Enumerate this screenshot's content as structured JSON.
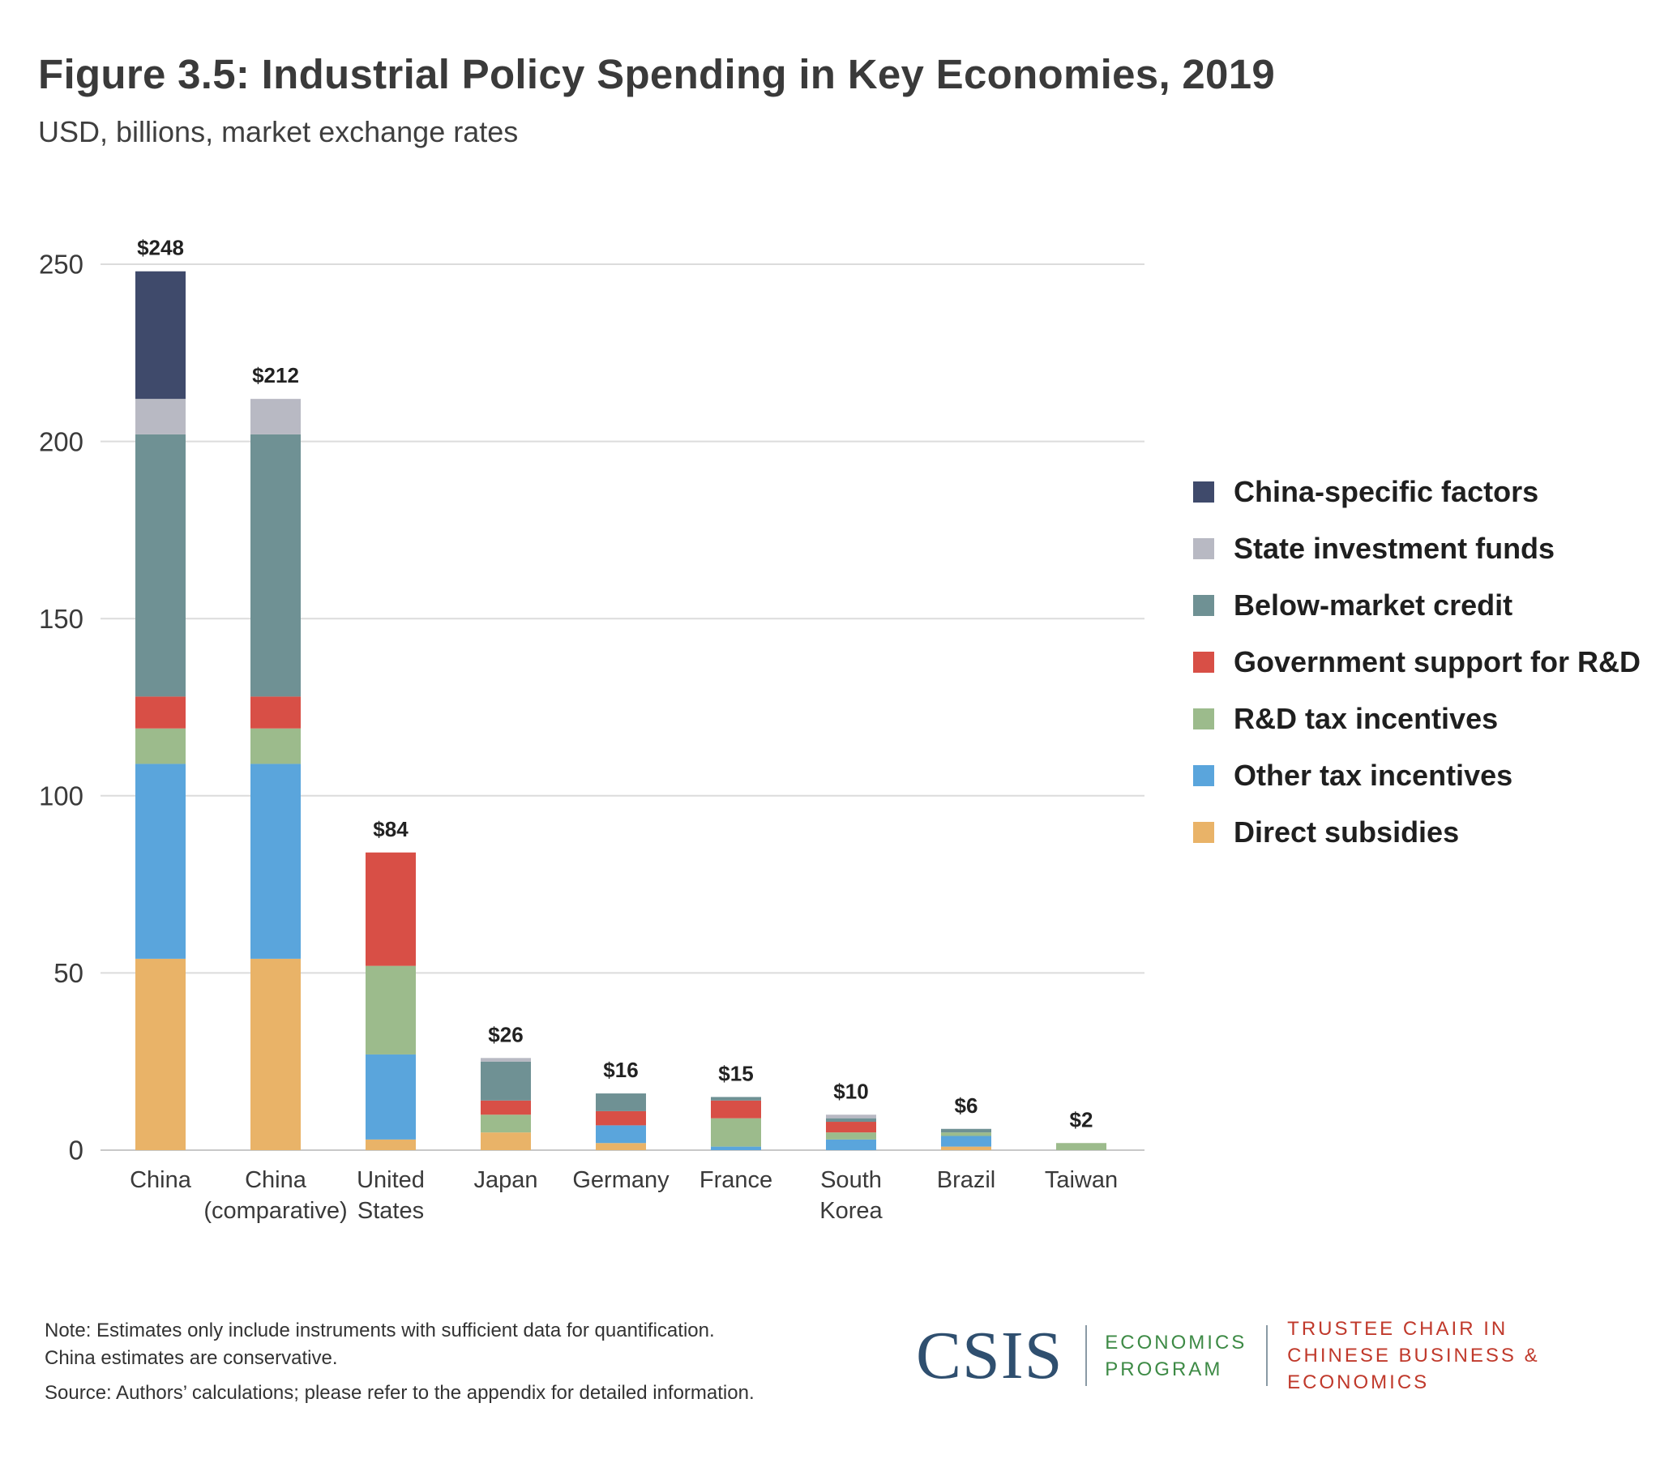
{
  "header": {
    "title": "Figure 3.5: Industrial Policy Spending in Key Economies, 2019",
    "subtitle": "USD, billions, market exchange rates"
  },
  "colors": {
    "china_specific": "#3f4a6b",
    "state_funds": "#b8b9c3",
    "below_market_credit": "#6f9194",
    "gov_rd": "#d84f46",
    "rd_tax": "#9cbb8c",
    "other_tax": "#5aa5dc",
    "direct_subsidies": "#e9b368",
    "gridline": "#dcdcdc",
    "axis": "#c8c8c8"
  },
  "chart_data": {
    "type": "bar",
    "stacked": true,
    "ylim": [
      0,
      250
    ],
    "yticks": [
      0,
      50,
      100,
      150,
      200,
      250
    ],
    "grid": true,
    "legend_position": "right",
    "categories": [
      [
        "China"
      ],
      [
        "China",
        "(comparative)"
      ],
      [
        "United",
        "States"
      ],
      [
        "Japan"
      ],
      [
        "Germany"
      ],
      [
        "France"
      ],
      [
        "South",
        "Korea"
      ],
      [
        "Brazil"
      ],
      [
        "Taiwan"
      ]
    ],
    "totals": [
      "$248",
      "$212",
      "$84",
      "$26",
      "$16",
      "$15",
      "$10",
      "$6",
      "$2"
    ],
    "series": [
      {
        "name": "Direct subsidies",
        "color_key": "direct_subsidies",
        "values": [
          54,
          54,
          3,
          5,
          2,
          0,
          0,
          1,
          0
        ]
      },
      {
        "name": "Other tax incentives",
        "color_key": "other_tax",
        "values": [
          55,
          55,
          24,
          0,
          5,
          1,
          3,
          3,
          0
        ]
      },
      {
        "name": "R&D tax incentives",
        "color_key": "rd_tax",
        "values": [
          10,
          10,
          25,
          5,
          0,
          8,
          2,
          1,
          2
        ]
      },
      {
        "name": "Government support for R&D",
        "color_key": "gov_rd",
        "values": [
          9,
          9,
          32,
          4,
          4,
          5,
          3,
          0,
          0
        ]
      },
      {
        "name": "Below-market credit",
        "color_key": "below_market_credit",
        "values": [
          74,
          74,
          0,
          11,
          5,
          1,
          1,
          1,
          0
        ]
      },
      {
        "name": "State investment funds",
        "color_key": "state_funds",
        "values": [
          10,
          10,
          0,
          1,
          0,
          0,
          1,
          0,
          0
        ]
      },
      {
        "name": "China-specific factors",
        "color_key": "china_specific",
        "values": [
          36,
          0,
          0,
          0,
          0,
          0,
          0,
          0,
          0
        ]
      }
    ]
  },
  "legend": {
    "items": [
      {
        "label": "China-specific factors",
        "color": "#3f4a6b"
      },
      {
        "label": "State investment funds",
        "color": "#b8b9c3"
      },
      {
        "label": "Below-market credit",
        "color": "#6f9194"
      },
      {
        "label": "Government support for R&D",
        "color": "#d84f46"
      },
      {
        "label": "R&D tax incentives",
        "color": "#9cbb8c"
      },
      {
        "label": "Other tax incentives",
        "color": "#5aa5dc"
      },
      {
        "label": "Direct subsidies",
        "color": "#e9b368"
      }
    ]
  },
  "footer": {
    "note_line1": "Note: Estimates only include instruments with sufficient data for quantification.",
    "note_line2": "China estimates are conservative.",
    "source": "Source: Authors’ calculations; please refer to the appendix for detailed information.",
    "logo_text": "CSIS",
    "program_line1": "ECONOMICS",
    "program_line2": "PROGRAM",
    "chair_line1": "TRUSTEE CHAIR IN",
    "chair_line2": "CHINESE BUSINESS & ECONOMICS"
  }
}
